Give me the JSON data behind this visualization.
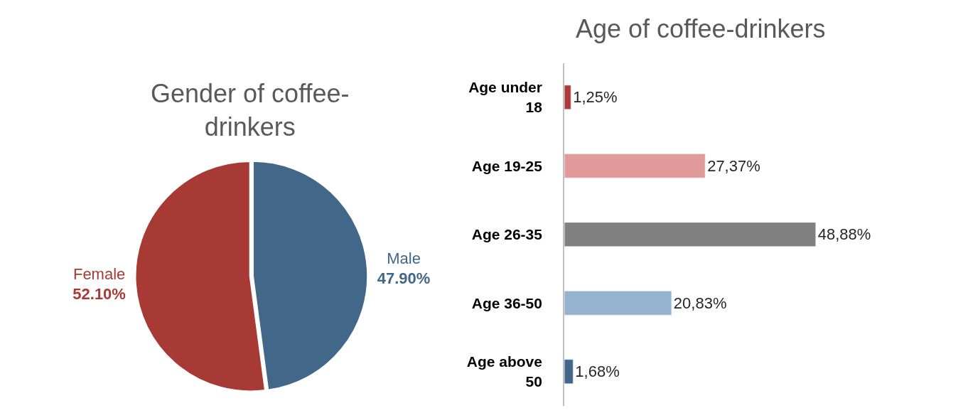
{
  "chart_data": [
    {
      "type": "pie",
      "title": "Gender of coffee-drinkers",
      "categories": [
        "Male",
        "Female"
      ],
      "values": [
        47.9,
        52.1
      ],
      "colors": [
        "#426789",
        "#a83a36"
      ],
      "value_labels": [
        "47.90%",
        "52.10%"
      ]
    },
    {
      "type": "bar",
      "title": "Age of coffee-drinkers",
      "orientation": "horizontal",
      "categories": [
        "Age under 18",
        "Age 19-25",
        "Age 26-35",
        "Age 36-50",
        "Age above 50"
      ],
      "tick_labels": "y",
      "series": [
        {
          "colors": [
            "#b03a3a",
            "#e09a9a",
            "#808080",
            "#95b3cf",
            "#426789"
          ],
          "values": [
            1.25,
            27.37,
            48.88,
            20.83,
            1.68
          ],
          "value_labels": [
            "1,25%",
            "27,37%",
            "48,88%",
            "20,83%",
            "1,68%"
          ]
        }
      ]
    }
  ]
}
